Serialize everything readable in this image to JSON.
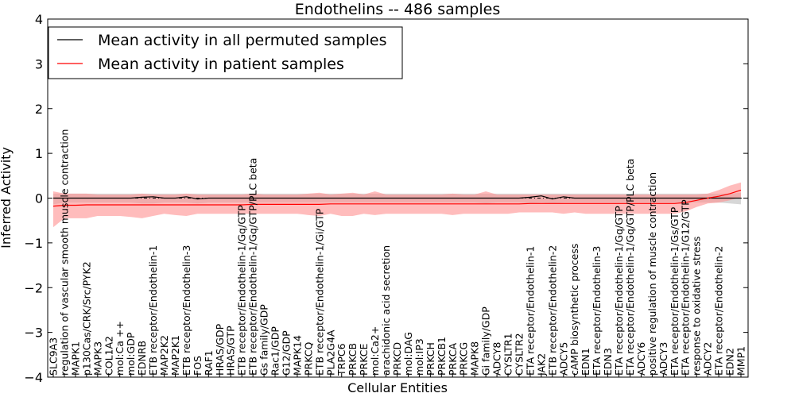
{
  "chart_data": {
    "type": "line",
    "title": "Endothelins -- 486 samples",
    "xlabel": "Cellular Entities",
    "ylabel": "Inferred Activity",
    "ylim": [
      -4,
      4
    ],
    "yticks": [
      -4,
      -3,
      -2,
      -1,
      0,
      1,
      2,
      3,
      4
    ],
    "ytick_labels": [
      "−4",
      "−3",
      "−2",
      "−1",
      "0",
      "1",
      "2",
      "3",
      "4"
    ],
    "reference_line": 0,
    "legend_position": "top-left",
    "categories": [
      "SLC9A3",
      "regulation of vascular smooth muscle contraction",
      "MAPK1",
      "p130Cas/CRK/Src/PYK2",
      "MAPK3",
      "COL1A2",
      "mol:Ca ++",
      "mol:GDP",
      "EDNRB",
      "ETB receptor/Endothelin-1",
      "MAP2K2",
      "MAP2K1",
      "ETB receptor/Endothelin-3",
      "FOS",
      "RAF1",
      "HRAS/GDP",
      "HRAS/GTP",
      "ETB receptor/Endothelin-1/Gq/GTP",
      "ETB receptor/Endothelin-1/Gq/GTP/PLC beta",
      "Gs family/GDP",
      "Rac1/GDP",
      "G12/GDP",
      "MAPK14",
      "PRKCQ",
      "ETB receptor/Endothelin-1/Gi/GTP",
      "PLA2G4A",
      "TRPC6",
      "PRKCB",
      "PRKCE",
      "mol:Ca2+",
      "arachidonic acid secretion",
      "PRKCD",
      "mol:DAG",
      "mol:IP3",
      "PRKCH",
      "PRKCB1",
      "PRKCA",
      "PRKCG",
      "MAPK8",
      "Gi family/GDP",
      "ADCY8",
      "CYSLTR1",
      "CYSLTR2",
      "ETA receptor/Endothelin-1",
      "JAK2",
      "ETB receptor/Endothelin-2",
      "ADCY5",
      "cAMP biosynthetic process",
      "EDN1",
      "ETA receptor/Endothelin-3",
      "EDN3",
      "ETA receptor/Endothelin-1/Gq/GTP",
      "ETA receptor/Endothelin-1/Gq/GTP/PLC beta",
      "ADCY6",
      "positive regulation of muscle contraction",
      "ADCY3",
      "ETA receptor/Endothelin-1/Gs/GTP",
      "ETA receptor/Endothelin-1/G12/GTP",
      "response to oxidative stress",
      "ADCY2",
      "ETA receptor/Endothelin-2",
      "EDN2",
      "MMP1"
    ],
    "series": [
      {
        "name": "Mean activity in all permuted samples",
        "color": "#000000",
        "band_color": "#b0b0b0",
        "values": [
          0,
          0,
          0,
          0,
          0,
          0,
          0,
          0,
          0.02,
          0.03,
          0,
          0,
          0.03,
          -0.02,
          0,
          0,
          0,
          0,
          0,
          0,
          0,
          0,
          0,
          0,
          0,
          0,
          0,
          0,
          0,
          0,
          0,
          0,
          0,
          0,
          0,
          0,
          0,
          0,
          0,
          0,
          0,
          0,
          0,
          0.02,
          0.05,
          -0.02,
          0.03,
          0,
          0,
          0,
          0,
          0,
          0,
          0,
          0,
          0,
          0,
          0,
          0,
          0,
          0,
          0,
          0
        ],
        "lower": [
          -0.14,
          -0.1,
          -0.1,
          -0.1,
          -0.1,
          -0.1,
          -0.1,
          -0.1,
          -0.12,
          -0.12,
          -0.1,
          -0.1,
          -0.1,
          -0.12,
          -0.1,
          -0.1,
          -0.1,
          -0.1,
          -0.1,
          -0.1,
          -0.1,
          -0.1,
          -0.1,
          -0.1,
          -0.1,
          -0.1,
          -0.1,
          -0.1,
          -0.1,
          -0.1,
          -0.1,
          -0.1,
          -0.1,
          -0.1,
          -0.1,
          -0.1,
          -0.1,
          -0.1,
          -0.1,
          -0.12,
          -0.1,
          -0.1,
          -0.1,
          -0.12,
          -0.1,
          -0.12,
          -0.1,
          -0.1,
          -0.1,
          -0.1,
          -0.1,
          -0.1,
          -0.1,
          -0.1,
          -0.1,
          -0.1,
          -0.1,
          -0.1,
          -0.1,
          -0.1,
          -0.1,
          -0.12,
          -0.14
        ],
        "upper": [
          0.1,
          0.1,
          0.1,
          0.1,
          0.1,
          0.1,
          0.1,
          0.1,
          0.1,
          0.1,
          0.1,
          0.1,
          0.1,
          0.1,
          0.1,
          0.1,
          0.1,
          0.1,
          0.1,
          0.1,
          0.1,
          0.1,
          0.1,
          0.1,
          0.1,
          0.1,
          0.1,
          0.1,
          0.1,
          0.1,
          0.1,
          0.1,
          0.1,
          0.1,
          0.1,
          0.1,
          0.1,
          0.1,
          0.1,
          0.1,
          0.1,
          0.1,
          0.1,
          0.1,
          0.1,
          0.1,
          0.1,
          0.1,
          0.1,
          0.1,
          0.1,
          0.1,
          0.1,
          0.1,
          0.1,
          0.1,
          0.1,
          0.1,
          0.1,
          0.1,
          0.1,
          0.1,
          0.12
        ]
      },
      {
        "name": "Mean activity in patient samples",
        "color": "#ff0000",
        "band_color": "#ff9090",
        "values": [
          -0.18,
          -0.16,
          -0.16,
          -0.15,
          -0.15,
          -0.15,
          -0.15,
          -0.15,
          -0.15,
          -0.15,
          -0.15,
          -0.15,
          -0.15,
          -0.15,
          -0.15,
          -0.15,
          -0.15,
          -0.15,
          -0.14,
          -0.14,
          -0.14,
          -0.14,
          -0.14,
          -0.14,
          -0.14,
          -0.13,
          -0.13,
          -0.13,
          -0.13,
          -0.13,
          -0.13,
          -0.13,
          -0.13,
          -0.13,
          -0.13,
          -0.13,
          -0.13,
          -0.13,
          -0.13,
          -0.13,
          -0.13,
          -0.13,
          -0.13,
          -0.12,
          -0.12,
          -0.12,
          -0.12,
          -0.12,
          -0.12,
          -0.12,
          -0.12,
          -0.12,
          -0.12,
          -0.12,
          -0.12,
          -0.12,
          -0.12,
          -0.1,
          -0.05,
          0,
          0.04,
          0.1,
          0.18
        ],
        "lower": [
          -0.65,
          -0.45,
          -0.45,
          -0.45,
          -0.4,
          -0.4,
          -0.4,
          -0.42,
          -0.45,
          -0.4,
          -0.35,
          -0.38,
          -0.4,
          -0.35,
          -0.35,
          -0.35,
          -0.35,
          -0.35,
          -0.35,
          -0.35,
          -0.35,
          -0.35,
          -0.35,
          -0.38,
          -0.4,
          -0.35,
          -0.4,
          -0.4,
          -0.35,
          -0.38,
          -0.35,
          -0.35,
          -0.35,
          -0.35,
          -0.35,
          -0.35,
          -0.38,
          -0.35,
          -0.35,
          -0.35,
          -0.35,
          -0.35,
          -0.32,
          -0.32,
          -0.32,
          -0.32,
          -0.35,
          -0.32,
          -0.35,
          -0.35,
          -0.35,
          -0.35,
          -0.35,
          -0.35,
          -0.35,
          -0.35,
          -0.35,
          -0.3,
          -0.2,
          -0.12,
          -0.1,
          -0.05,
          0.02
        ],
        "upper": [
          0.15,
          0.1,
          0.1,
          0.1,
          0.08,
          0.08,
          0.08,
          0.08,
          0.1,
          0.08,
          0.08,
          0.08,
          0.1,
          0.08,
          0.08,
          0.08,
          0.08,
          0.08,
          0.1,
          0.08,
          0.08,
          0.08,
          0.08,
          0.1,
          0.12,
          0.08,
          0.1,
          0.12,
          0.08,
          0.15,
          0.08,
          0.08,
          0.08,
          0.08,
          0.08,
          0.08,
          0.1,
          0.08,
          0.08,
          0.15,
          0.08,
          0.08,
          0.08,
          0.08,
          0.08,
          0.08,
          0.08,
          0.08,
          0.08,
          0.08,
          0.08,
          0.08,
          0.08,
          0.08,
          0.08,
          0.08,
          0.08,
          0.08,
          0.08,
          0.1,
          0.18,
          0.28,
          0.35
        ]
      }
    ]
  }
}
